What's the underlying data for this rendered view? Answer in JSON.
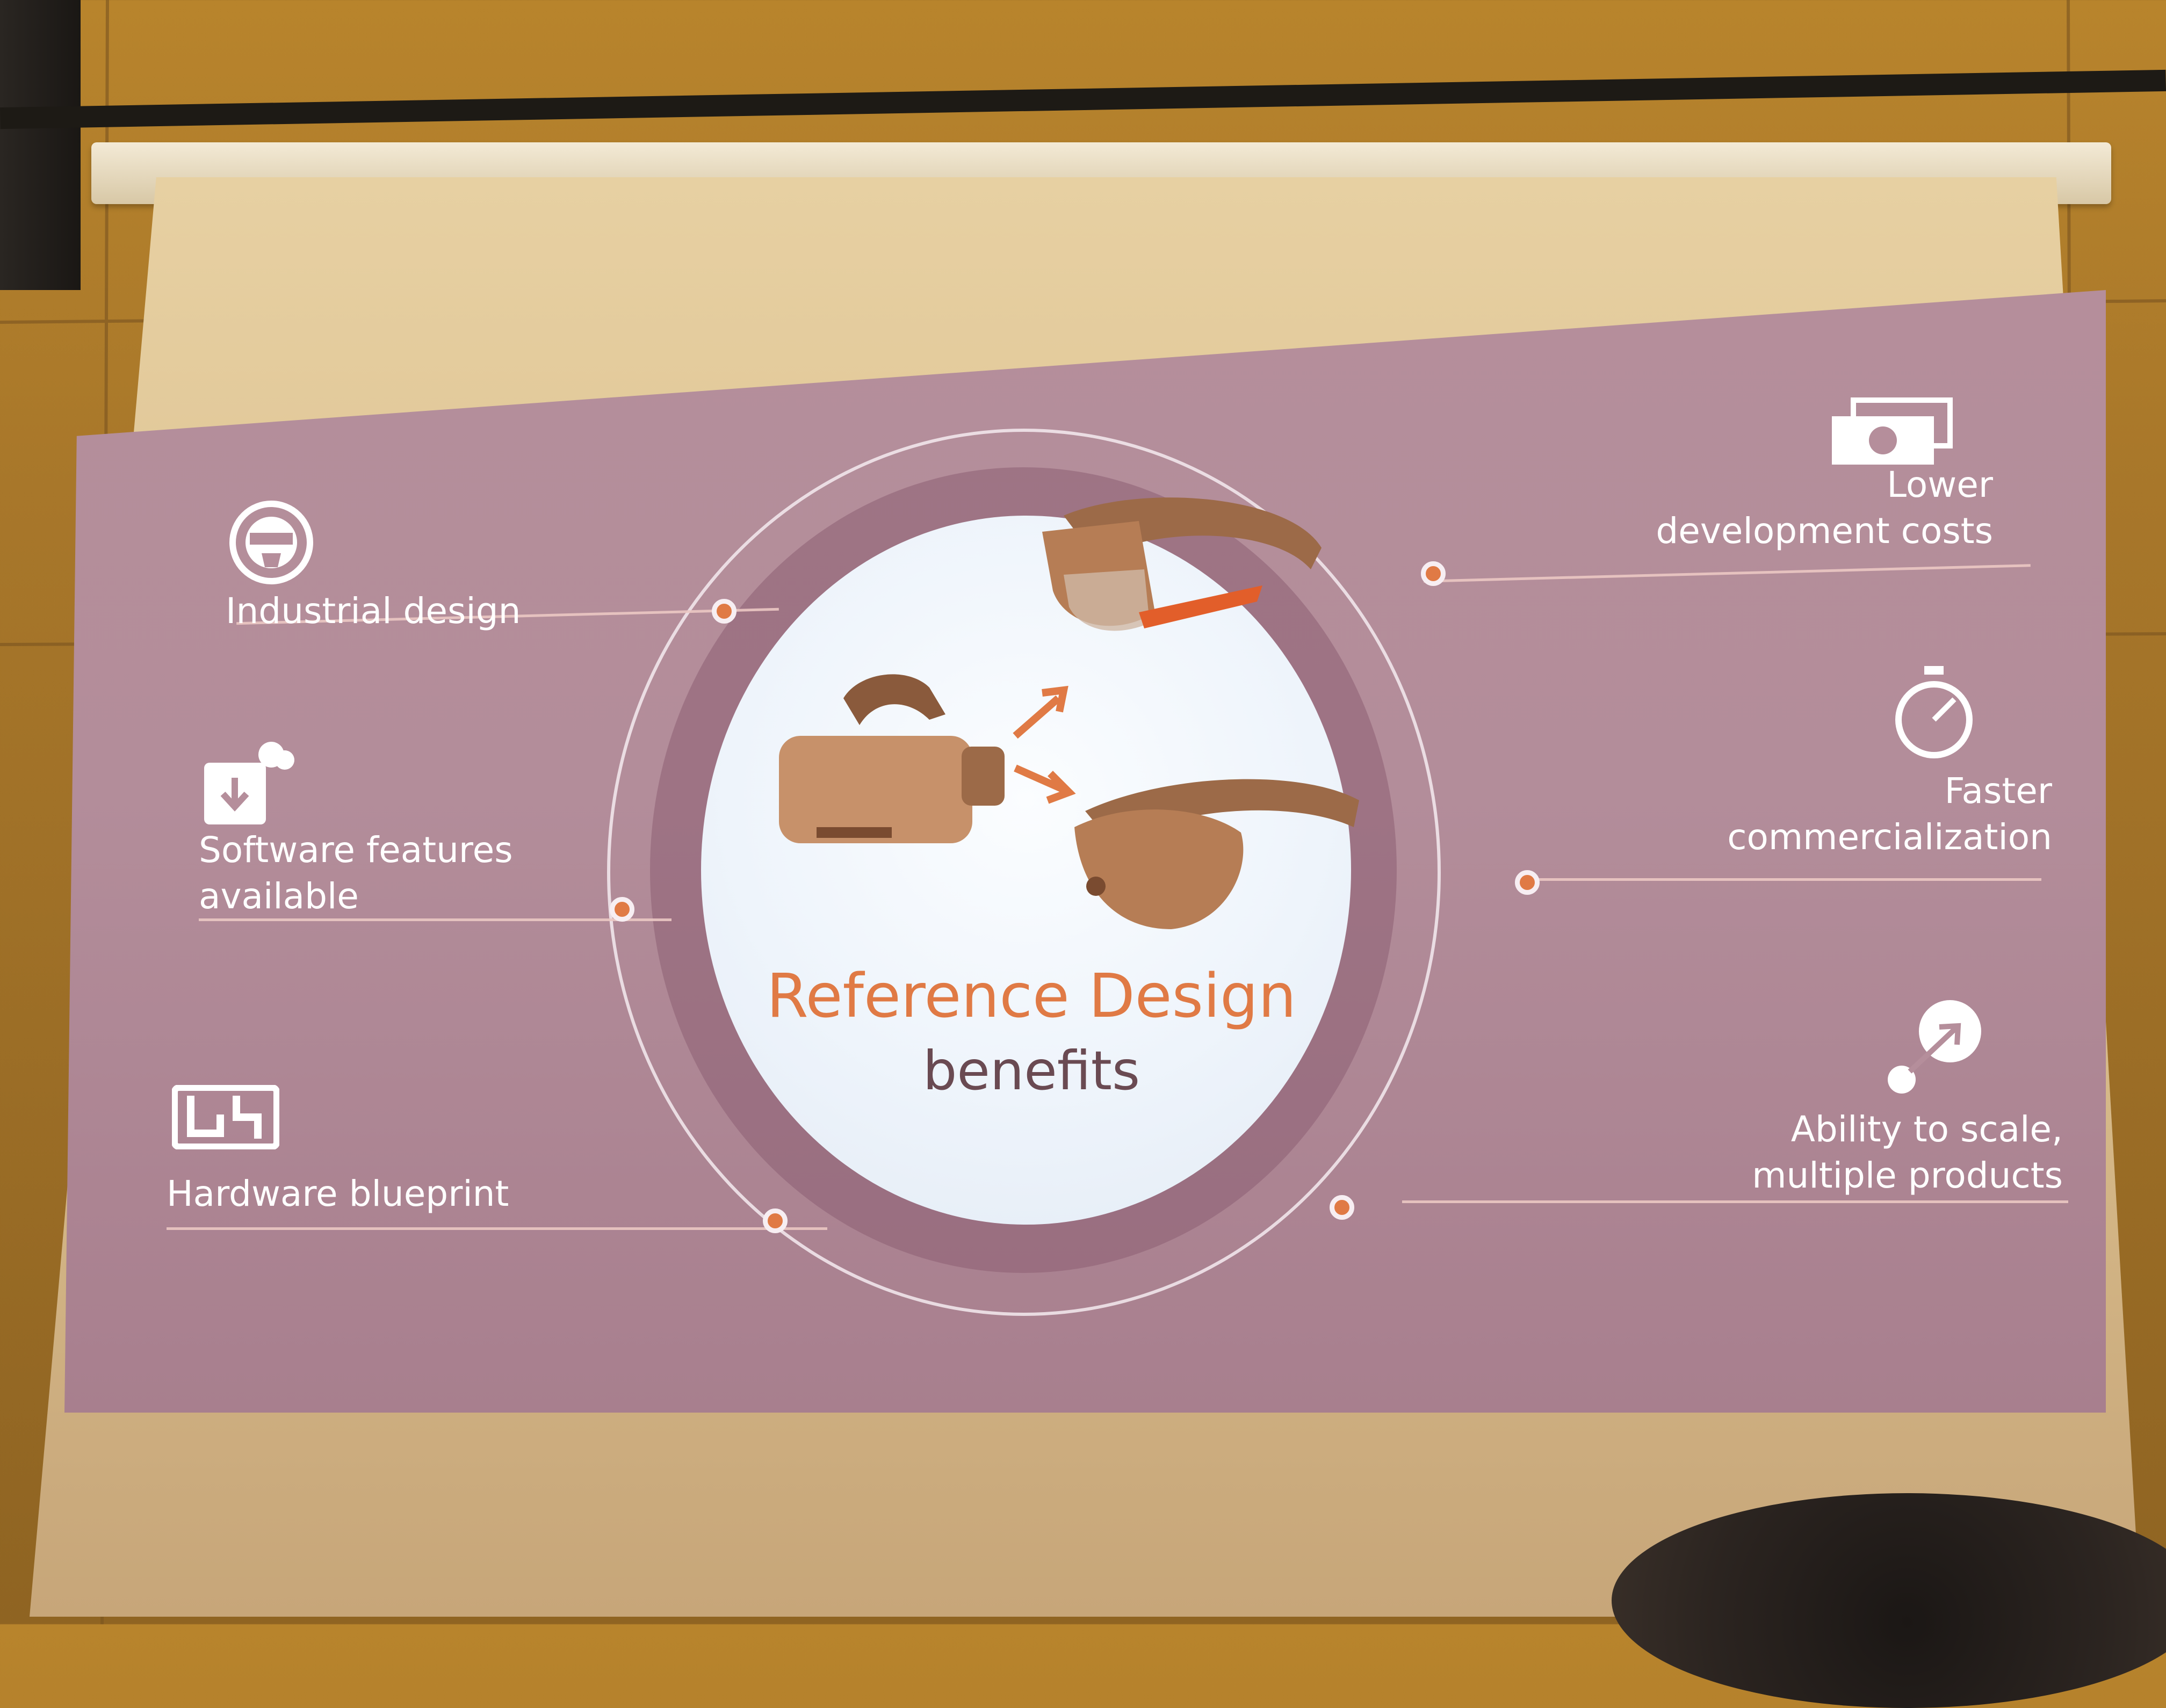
{
  "slide": {
    "title": "Reference Design",
    "subtitle": "benefits",
    "benefits_left": [
      {
        "label": "Industrial design",
        "icon": "vr-head-icon"
      },
      {
        "label_line1": "Software features",
        "label_line2": "available",
        "icon": "software-download-icon"
      },
      {
        "label": "Hardware blueprint",
        "icon": "circuit-board-icon"
      }
    ],
    "benefits_right": [
      {
        "label_line1": "Lower",
        "label_line2": "development costs",
        "icon": "money-icon"
      },
      {
        "label_line1": "Faster",
        "label_line2": "commercialization",
        "icon": "stopwatch-icon"
      },
      {
        "label_line1": "Ability to scale,",
        "label_line2": "multiple products",
        "icon": "scale-arrow-icon"
      }
    ],
    "colors": {
      "accent": "#e07a45",
      "slide_background": "#b58e9b",
      "text": "#ffffff"
    }
  }
}
